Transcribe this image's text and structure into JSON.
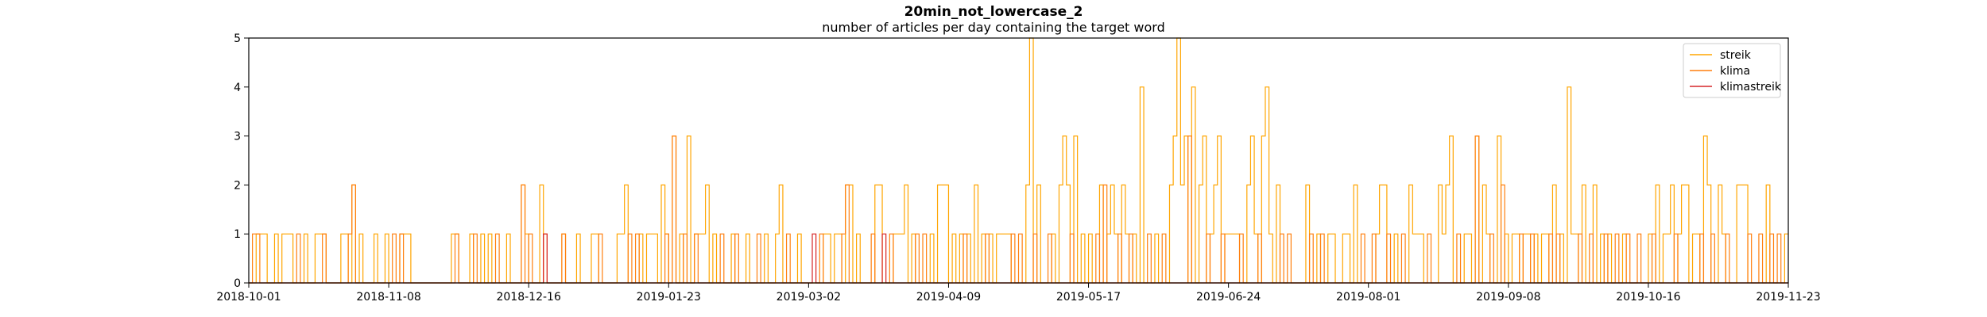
{
  "chart_data": {
    "type": "line",
    "title": "20min_not_lowercase_2",
    "subtitle": "number of articles per day containing the target word",
    "xlabel": "",
    "ylabel": "",
    "x_range": [
      "2018-10-01",
      "2019-11-23"
    ],
    "ylim": [
      0,
      5
    ],
    "x_ticks": [
      "2018-10-01",
      "2018-11-08",
      "2018-12-16",
      "2019-01-23",
      "2019-03-02",
      "2019-04-09",
      "2019-05-17",
      "2019-06-24",
      "2019-08-01",
      "2019-09-08",
      "2019-10-16",
      "2019-11-23"
    ],
    "y_ticks": [
      "0",
      "1",
      "2",
      "3",
      "4",
      "5"
    ],
    "grid": false,
    "legend_position": "top-right",
    "series": [
      {
        "name": "streik",
        "color": "#ffa500",
        "points": [
          [
            "2018-10-03",
            1
          ],
          [
            "2018-10-04",
            1
          ],
          [
            "2018-10-05",
            1
          ],
          [
            "2018-10-08",
            1
          ],
          [
            "2018-10-10",
            1
          ],
          [
            "2018-10-11",
            1
          ],
          [
            "2018-10-12",
            1
          ],
          [
            "2018-10-16",
            1
          ],
          [
            "2018-10-19",
            1
          ],
          [
            "2018-10-20",
            1
          ],
          [
            "2018-10-21",
            1
          ],
          [
            "2018-10-26",
            1
          ],
          [
            "2018-10-27",
            1
          ],
          [
            "2018-10-29",
            2
          ],
          [
            "2018-10-31",
            1
          ],
          [
            "2018-11-04",
            1
          ],
          [
            "2018-11-07",
            1
          ],
          [
            "2018-11-11",
            1
          ],
          [
            "2018-11-12",
            1
          ],
          [
            "2018-11-13",
            1
          ],
          [
            "2018-11-25",
            1
          ],
          [
            "2018-11-26",
            1
          ],
          [
            "2018-11-30",
            1
          ],
          [
            "2018-12-03",
            1
          ],
          [
            "2018-12-05",
            1
          ],
          [
            "2018-12-10",
            1
          ],
          [
            "2018-12-14",
            2
          ],
          [
            "2018-12-15",
            1
          ],
          [
            "2018-12-19",
            2
          ],
          [
            "2018-12-25",
            1
          ],
          [
            "2018-12-29",
            1
          ],
          [
            "2019-01-02",
            1
          ],
          [
            "2019-01-03",
            1
          ],
          [
            "2019-01-09",
            1
          ],
          [
            "2019-01-10",
            1
          ],
          [
            "2019-01-11",
            2
          ],
          [
            "2019-01-15",
            1
          ],
          [
            "2019-01-17",
            1
          ],
          [
            "2019-01-18",
            1
          ],
          [
            "2019-01-19",
            1
          ],
          [
            "2019-01-21",
            2
          ],
          [
            "2019-01-22",
            1
          ],
          [
            "2019-01-24",
            3
          ],
          [
            "2019-01-26",
            1
          ],
          [
            "2019-01-28",
            3
          ],
          [
            "2019-01-30",
            1
          ],
          [
            "2019-01-31",
            1
          ],
          [
            "2019-02-01",
            1
          ],
          [
            "2019-02-02",
            2
          ],
          [
            "2019-02-04",
            1
          ],
          [
            "2019-02-09",
            1
          ],
          [
            "2019-02-13",
            1
          ],
          [
            "2019-02-18",
            1
          ],
          [
            "2019-02-21",
            1
          ],
          [
            "2019-02-22",
            2
          ],
          [
            "2019-02-27",
            1
          ],
          [
            "2019-03-06",
            1
          ],
          [
            "2019-03-07",
            1
          ],
          [
            "2019-03-09",
            1
          ],
          [
            "2019-03-10",
            1
          ],
          [
            "2019-03-12",
            2
          ],
          [
            "2019-03-13",
            2
          ],
          [
            "2019-03-15",
            1
          ],
          [
            "2019-03-20",
            2
          ],
          [
            "2019-03-21",
            2
          ],
          [
            "2019-03-25",
            1
          ],
          [
            "2019-03-26",
            1
          ],
          [
            "2019-03-27",
            1
          ],
          [
            "2019-03-28",
            2
          ],
          [
            "2019-03-30",
            1
          ],
          [
            "2019-04-04",
            1
          ],
          [
            "2019-04-06",
            2
          ],
          [
            "2019-04-07",
            2
          ],
          [
            "2019-04-08",
            2
          ],
          [
            "2019-04-10",
            1
          ],
          [
            "2019-04-12",
            1
          ],
          [
            "2019-04-14",
            1
          ],
          [
            "2019-04-16",
            2
          ],
          [
            "2019-04-18",
            1
          ],
          [
            "2019-04-20",
            1
          ],
          [
            "2019-04-22",
            1
          ],
          [
            "2019-04-23",
            1
          ],
          [
            "2019-04-24",
            1
          ],
          [
            "2019-04-25",
            1
          ],
          [
            "2019-04-30",
            2
          ],
          [
            "2019-05-01",
            5
          ],
          [
            "2019-05-03",
            2
          ],
          [
            "2019-05-07",
            1
          ],
          [
            "2019-05-09",
            2
          ],
          [
            "2019-05-10",
            3
          ],
          [
            "2019-05-11",
            2
          ],
          [
            "2019-05-13",
            3
          ],
          [
            "2019-05-15",
            1
          ],
          [
            "2019-05-17",
            1
          ],
          [
            "2019-05-20",
            2
          ],
          [
            "2019-05-22",
            1
          ],
          [
            "2019-05-23",
            2
          ],
          [
            "2019-05-24",
            1
          ],
          [
            "2019-05-26",
            2
          ],
          [
            "2019-05-27",
            1
          ],
          [
            "2019-05-29",
            1
          ],
          [
            "2019-05-31",
            4
          ],
          [
            "2019-06-04",
            1
          ],
          [
            "2019-06-08",
            2
          ],
          [
            "2019-06-09",
            3
          ],
          [
            "2019-06-10",
            5
          ],
          [
            "2019-06-11",
            2
          ],
          [
            "2019-06-12",
            3
          ],
          [
            "2019-06-14",
            4
          ],
          [
            "2019-06-16",
            2
          ],
          [
            "2019-06-17",
            3
          ],
          [
            "2019-06-19",
            1
          ],
          [
            "2019-06-20",
            2
          ],
          [
            "2019-06-21",
            3
          ],
          [
            "2019-06-23",
            1
          ],
          [
            "2019-06-24",
            1
          ],
          [
            "2019-06-25",
            1
          ],
          [
            "2019-06-26",
            1
          ],
          [
            "2019-06-29",
            2
          ],
          [
            "2019-06-30",
            3
          ],
          [
            "2019-07-01",
            1
          ],
          [
            "2019-07-03",
            3
          ],
          [
            "2019-07-04",
            4
          ],
          [
            "2019-07-05",
            1
          ],
          [
            "2019-07-07",
            2
          ],
          [
            "2019-07-15",
            2
          ],
          [
            "2019-07-18",
            1
          ],
          [
            "2019-07-21",
            1
          ],
          [
            "2019-07-22",
            1
          ],
          [
            "2019-07-25",
            1
          ],
          [
            "2019-07-26",
            1
          ],
          [
            "2019-07-28",
            2
          ],
          [
            "2019-08-03",
            1
          ],
          [
            "2019-08-04",
            2
          ],
          [
            "2019-08-05",
            2
          ],
          [
            "2019-08-08",
            1
          ],
          [
            "2019-08-12",
            2
          ],
          [
            "2019-08-13",
            1
          ],
          [
            "2019-08-14",
            1
          ],
          [
            "2019-08-15",
            1
          ],
          [
            "2019-08-20",
            2
          ],
          [
            "2019-08-21",
            1
          ],
          [
            "2019-08-22",
            2
          ],
          [
            "2019-08-23",
            3
          ],
          [
            "2019-08-27",
            1
          ],
          [
            "2019-08-28",
            1
          ],
          [
            "2019-08-30",
            3
          ],
          [
            "2019-09-01",
            2
          ],
          [
            "2019-09-02",
            1
          ],
          [
            "2019-09-05",
            3
          ],
          [
            "2019-09-07",
            1
          ],
          [
            "2019-09-09",
            1
          ],
          [
            "2019-09-10",
            1
          ],
          [
            "2019-09-12",
            1
          ],
          [
            "2019-09-13",
            1
          ],
          [
            "2019-09-15",
            1
          ],
          [
            "2019-09-17",
            1
          ],
          [
            "2019-09-18",
            1
          ],
          [
            "2019-09-20",
            2
          ],
          [
            "2019-09-22",
            1
          ],
          [
            "2019-09-24",
            4
          ],
          [
            "2019-09-25",
            1
          ],
          [
            "2019-09-26",
            1
          ],
          [
            "2019-09-28",
            2
          ],
          [
            "2019-10-01",
            2
          ],
          [
            "2019-10-03",
            1
          ],
          [
            "2019-10-05",
            1
          ],
          [
            "2019-10-09",
            1
          ],
          [
            "2019-10-16",
            1
          ],
          [
            "2019-10-18",
            2
          ],
          [
            "2019-10-20",
            1
          ],
          [
            "2019-10-21",
            1
          ],
          [
            "2019-10-22",
            2
          ],
          [
            "2019-10-24",
            1
          ],
          [
            "2019-10-25",
            2
          ],
          [
            "2019-10-26",
            2
          ],
          [
            "2019-10-28",
            1
          ],
          [
            "2019-10-29",
            1
          ],
          [
            "2019-10-31",
            3
          ],
          [
            "2019-11-01",
            2
          ],
          [
            "2019-11-04",
            2
          ],
          [
            "2019-11-05",
            1
          ],
          [
            "2019-11-09",
            2
          ],
          [
            "2019-11-10",
            2
          ],
          [
            "2019-11-11",
            2
          ],
          [
            "2019-11-17",
            2
          ],
          [
            "2019-11-22",
            1
          ]
        ]
      },
      {
        "name": "klima",
        "color": "#ff7f0e",
        "points": [
          [
            "2018-10-02",
            1
          ],
          [
            "2018-10-03",
            1
          ],
          [
            "2018-10-14",
            1
          ],
          [
            "2018-10-21",
            1
          ],
          [
            "2018-10-28",
            1
          ],
          [
            "2018-10-29",
            2
          ],
          [
            "2018-11-09",
            1
          ],
          [
            "2018-11-11",
            1
          ],
          [
            "2018-11-26",
            1
          ],
          [
            "2018-12-01",
            1
          ],
          [
            "2018-12-07",
            1
          ],
          [
            "2018-12-14",
            2
          ],
          [
            "2018-12-16",
            1
          ],
          [
            "2018-12-20",
            1
          ],
          [
            "2018-12-25",
            1
          ],
          [
            "2019-01-04",
            1
          ],
          [
            "2019-01-12",
            1
          ],
          [
            "2019-01-14",
            1
          ],
          [
            "2019-01-22",
            1
          ],
          [
            "2019-01-24",
            3
          ],
          [
            "2019-01-27",
            1
          ],
          [
            "2019-01-30",
            1
          ],
          [
            "2019-02-06",
            1
          ],
          [
            "2019-02-10",
            1
          ],
          [
            "2019-02-16",
            1
          ],
          [
            "2019-02-24",
            1
          ],
          [
            "2019-03-05",
            1
          ],
          [
            "2019-03-11",
            1
          ],
          [
            "2019-03-12",
            2
          ],
          [
            "2019-03-19",
            1
          ],
          [
            "2019-03-24",
            1
          ],
          [
            "2019-03-31",
            1
          ],
          [
            "2019-04-02",
            1
          ],
          [
            "2019-04-13",
            1
          ],
          [
            "2019-04-19",
            1
          ],
          [
            "2019-04-26",
            1
          ],
          [
            "2019-04-28",
            1
          ],
          [
            "2019-05-02",
            1
          ],
          [
            "2019-05-06",
            1
          ],
          [
            "2019-05-12",
            1
          ],
          [
            "2019-05-19",
            1
          ],
          [
            "2019-05-21",
            2
          ],
          [
            "2019-05-25",
            1
          ],
          [
            "2019-05-28",
            1
          ],
          [
            "2019-06-02",
            1
          ],
          [
            "2019-06-06",
            1
          ],
          [
            "2019-06-13",
            3
          ],
          [
            "2019-06-18",
            1
          ],
          [
            "2019-06-22",
            1
          ],
          [
            "2019-06-27",
            1
          ],
          [
            "2019-07-02",
            1
          ],
          [
            "2019-07-08",
            1
          ],
          [
            "2019-07-10",
            1
          ],
          [
            "2019-07-16",
            1
          ],
          [
            "2019-07-19",
            1
          ],
          [
            "2019-07-30",
            1
          ],
          [
            "2019-08-02",
            1
          ],
          [
            "2019-08-06",
            1
          ],
          [
            "2019-08-10",
            1
          ],
          [
            "2019-08-17",
            1
          ],
          [
            "2019-08-25",
            1
          ],
          [
            "2019-08-30",
            3
          ],
          [
            "2019-09-03",
            1
          ],
          [
            "2019-09-06",
            2
          ],
          [
            "2019-09-11",
            1
          ],
          [
            "2019-09-14",
            1
          ],
          [
            "2019-09-19",
            1
          ],
          [
            "2019-09-21",
            1
          ],
          [
            "2019-09-27",
            1
          ],
          [
            "2019-09-30",
            1
          ],
          [
            "2019-10-04",
            1
          ],
          [
            "2019-10-07",
            1
          ],
          [
            "2019-10-10",
            1
          ],
          [
            "2019-10-13",
            1
          ],
          [
            "2019-10-17",
            1
          ],
          [
            "2019-10-23",
            1
          ],
          [
            "2019-10-30",
            1
          ],
          [
            "2019-11-02",
            1
          ],
          [
            "2019-11-06",
            1
          ],
          [
            "2019-11-12",
            1
          ],
          [
            "2019-11-15",
            1
          ],
          [
            "2019-11-18",
            1
          ],
          [
            "2019-11-20",
            1
          ]
        ]
      },
      {
        "name": "klimastreik",
        "color": "#d62728",
        "points": [
          [
            "2018-12-20",
            1
          ],
          [
            "2019-03-03",
            1
          ],
          [
            "2019-03-22",
            1
          ]
        ]
      }
    ]
  }
}
